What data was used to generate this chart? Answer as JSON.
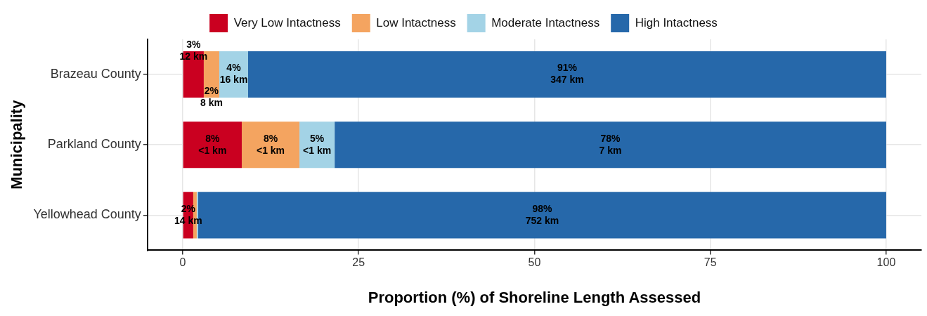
{
  "chart_data": {
    "type": "bar",
    "orientation": "horizontal",
    "stacked": true,
    "xlabel": "Proportion (%) of Shoreline Length Assessed",
    "ylabel": "Municipality",
    "categories": [
      "Brazeau County",
      "Parkland County",
      "Yellowhead County"
    ],
    "series": [
      {
        "name": "Very Low Intactness",
        "color": "#ca0020",
        "values": [
          3,
          8.4,
          1.5
        ],
        "value_labels": [
          "3%\n12 km",
          "8%\n<1 km",
          "2%\n14 km"
        ]
      },
      {
        "name": "Low Intactness",
        "color": "#f4a460",
        "values": [
          2.2,
          8.2,
          0.5
        ],
        "value_labels": [
          "2%\n8 km",
          "8%\n<1 km",
          null
        ]
      },
      {
        "name": "Moderate Intactness",
        "color": "#a3d3e6",
        "values": [
          4.1,
          5,
          0.2
        ],
        "value_labels": [
          "4%\n16 km",
          "5%\n<1 km",
          null
        ]
      },
      {
        "name": "High Intactness",
        "color": "#2668aa",
        "values": [
          90.7,
          78.4,
          97.8
        ],
        "value_labels": [
          "91%\n347 km",
          "78%\n7 km",
          "98%\n752 km"
        ]
      }
    ],
    "xlim": [
      -5,
      105
    ],
    "xticks": [
      0,
      25,
      50,
      75,
      100
    ],
    "grid": true,
    "legend": "top"
  }
}
